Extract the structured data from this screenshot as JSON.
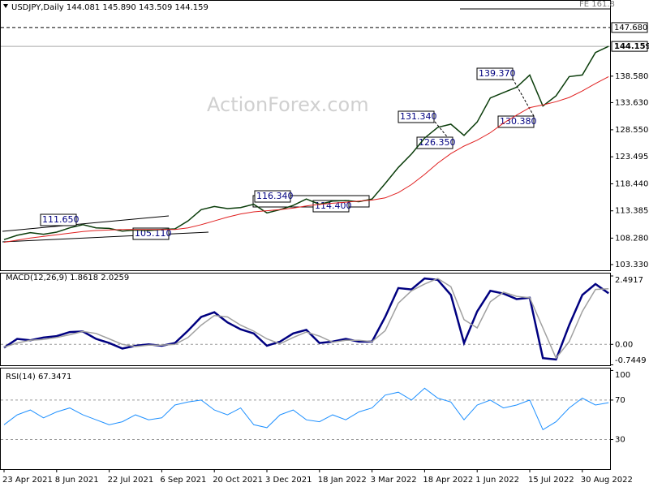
{
  "chart_data": [
    {
      "type": "line",
      "title": "USDJPY,Daily  144.081 145.890 143.509 144.159",
      "watermark": "ActionForex.com",
      "series": [
        {
          "color": "#0b3d0b",
          "values": [
            108.0,
            108.8,
            109.3,
            109.0,
            109.4,
            110.2,
            110.8,
            110.2,
            110.1,
            109.6,
            109.8,
            109.7,
            109.9,
            110.0,
            111.5,
            113.6,
            114.2,
            113.8,
            114.0,
            114.6,
            113.0,
            113.6,
            114.4,
            115.6,
            114.6,
            115.2,
            115.3,
            115.1,
            115.6,
            118.5,
            121.5,
            124.0,
            127.0,
            129.0,
            129.6,
            127.5,
            130.0,
            134.5,
            135.5,
            136.5,
            138.8,
            133.0,
            134.9,
            138.5,
            138.8,
            143.0,
            144.159
          ]
        },
        {
          "color": "#e02020",
          "values": [
            107.5,
            107.9,
            108.3,
            108.6,
            108.9,
            109.2,
            109.5,
            109.7,
            109.8,
            109.9,
            109.9,
            109.9,
            109.9,
            109.9,
            110.2,
            110.8,
            111.5,
            112.2,
            112.8,
            113.2,
            113.4,
            113.6,
            113.9,
            114.3,
            114.6,
            114.8,
            115.0,
            115.2,
            115.4,
            115.8,
            116.8,
            118.3,
            120.2,
            122.3,
            124.1,
            125.5,
            126.6,
            128.0,
            129.8,
            131.3,
            132.7,
            133.2,
            133.8,
            134.6,
            135.8,
            137.2,
            138.5
          ]
        }
      ],
      "ylim": [
        102.26,
        152.68
      ],
      "yticks": [
        {
          "value": 103.33,
          "label": "103.330"
        },
        {
          "value": 108.28,
          "label": "108.280"
        },
        113.385,
        {
          "value": 118.44,
          "label": "118.440"
        },
        123.495,
        {
          "value": 128.55,
          "label": "128.550"
        },
        {
          "value": 133.63,
          "label": "133.630"
        },
        {
          "value": 138.58,
          "label": "138.580"
        }
      ],
      "hlines": [
        {
          "value": 147.68,
          "label": "147.680"
        },
        {
          "value": 144.159,
          "label": "144.159"
        }
      ],
      "fe_label": "FE 161.8",
      "annotations": [
        "111.650",
        "105.110",
        "116.340",
        "114.400",
        "131.340",
        "126.350",
        "139.370",
        "130.380"
      ]
    },
    {
      "type": "line",
      "title": "MACD(12,26,9) 1.8618 2.0259",
      "series": [
        {
          "color": "#000080",
          "values": [
            -0.12,
            0.2,
            0.15,
            0.25,
            0.3,
            0.45,
            0.47,
            0.2,
            0.05,
            -0.15,
            -0.05,
            0.0,
            -0.05,
            0.05,
            0.5,
            1.0,
            1.17,
            0.8,
            0.55,
            0.4,
            -0.05,
            0.1,
            0.4,
            0.53,
            0.05,
            0.1,
            0.2,
            0.1,
            0.1,
            1.0,
            2.05,
            2.0,
            2.4,
            2.35,
            1.8,
            0.05,
            1.2,
            1.95,
            1.85,
            1.65,
            1.7,
            -0.5,
            -0.55,
            0.7,
            1.8,
            2.2,
            1.8618
          ]
        },
        {
          "color": "#a0a0a0",
          "values": [
            -0.1,
            0.05,
            0.15,
            0.18,
            0.25,
            0.35,
            0.47,
            0.4,
            0.2,
            0.0,
            -0.08,
            -0.03,
            -0.03,
            0.0,
            0.25,
            0.7,
            1.05,
            1.0,
            0.7,
            0.48,
            0.2,
            0.02,
            0.25,
            0.45,
            0.3,
            0.08,
            0.15,
            0.15,
            0.1,
            0.5,
            1.5,
            1.95,
            2.2,
            2.4,
            2.1,
            0.9,
            0.6,
            1.55,
            1.9,
            1.75,
            1.7,
            0.6,
            -0.5,
            0.1,
            1.2,
            2.0,
            2.0259
          ]
        }
      ],
      "ylim": [
        -0.76,
        2.58
      ],
      "yticks": [
        2.4917,
        {
          "value": 0,
          "label": "0.00"
        },
        -0.7449
      ],
      "levels": [
        0
      ]
    },
    {
      "type": "line",
      "title": "RSI(14) 67.3471",
      "categories": [
        "23 Apr 2021",
        null,
        null,
        null,
        "8 Jun 2021",
        null,
        null,
        null,
        "22 Jul 2021",
        null,
        null,
        null,
        "6 Sep 2021",
        null,
        null,
        null,
        "20 Oct 2021",
        null,
        null,
        null,
        "3 Dec 2021",
        null,
        null,
        null,
        "18 Jan 2022",
        null,
        null,
        null,
        "3 Mar 2022",
        null,
        null,
        null,
        "18 Apr 2022",
        null,
        null,
        null,
        "1 Jun 2022",
        null,
        null,
        null,
        "15 Jul 2022",
        null,
        null,
        null,
        "30 Aug 2022",
        null,
        null
      ],
      "series": [
        {
          "color": "#1e90ff",
          "values": [
            45,
            55,
            60,
            52,
            58,
            62,
            55,
            50,
            45,
            48,
            55,
            50,
            52,
            65,
            68,
            70,
            60,
            55,
            62,
            45,
            42,
            55,
            60,
            50,
            48,
            55,
            50,
            58,
            62,
            75,
            78,
            70,
            82,
            72,
            68,
            50,
            65,
            70,
            62,
            65,
            70,
            40,
            48,
            62,
            72,
            65,
            67.3471
          ]
        }
      ],
      "ylim": [
        0,
        102
      ],
      "yticks": [
        100,
        70,
        30
      ],
      "levels": [
        70,
        30
      ]
    }
  ]
}
